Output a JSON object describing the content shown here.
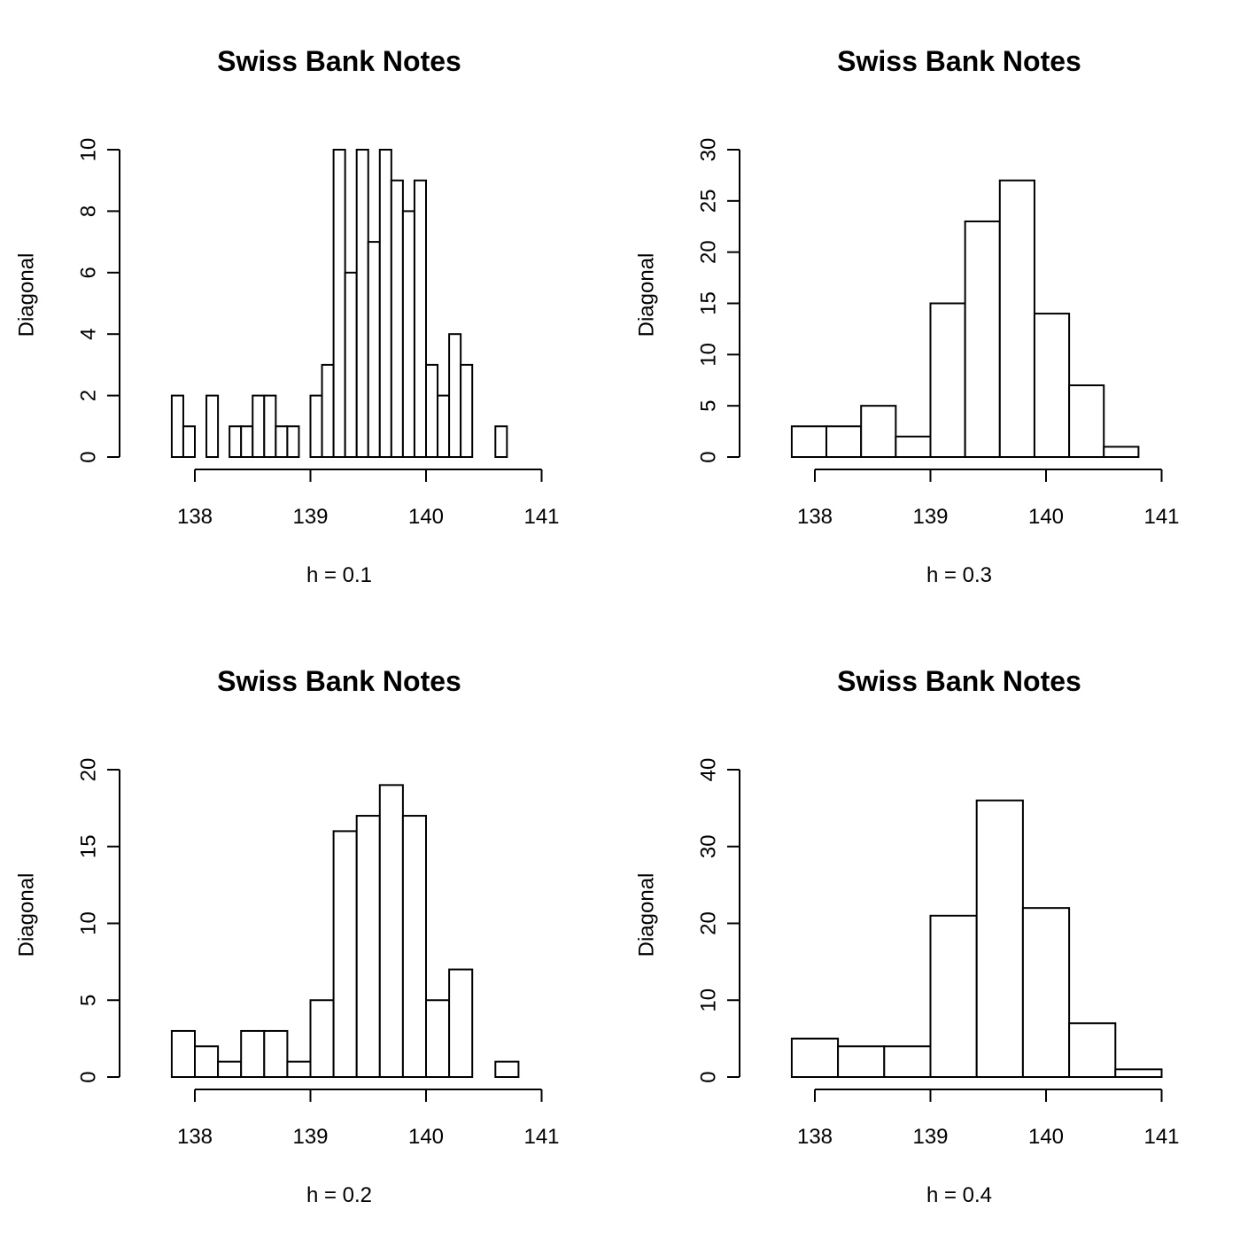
{
  "chart_data": [
    {
      "type": "bar",
      "title": "Swiss Bank Notes",
      "xlabel": "h = 0.1",
      "ylabel": "Diagonal",
      "xlim": [
        137.5,
        141.0
      ],
      "xticks": [
        138,
        139,
        140,
        141
      ],
      "ylim": [
        0,
        10
      ],
      "yticks": [
        0,
        2,
        4,
        6,
        8,
        10
      ],
      "bin_width": 0.1,
      "bins": [
        {
          "x0": 137.8,
          "x1": 137.9,
          "y": 2
        },
        {
          "x0": 137.9,
          "x1": 138.0,
          "y": 1
        },
        {
          "x0": 138.0,
          "x1": 138.1,
          "y": 0
        },
        {
          "x0": 138.1,
          "x1": 138.2,
          "y": 2
        },
        {
          "x0": 138.2,
          "x1": 138.3,
          "y": 0
        },
        {
          "x0": 138.3,
          "x1": 138.4,
          "y": 1
        },
        {
          "x0": 138.4,
          "x1": 138.5,
          "y": 1
        },
        {
          "x0": 138.5,
          "x1": 138.6,
          "y": 2
        },
        {
          "x0": 138.6,
          "x1": 138.7,
          "y": 2
        },
        {
          "x0": 138.7,
          "x1": 138.8,
          "y": 1
        },
        {
          "x0": 138.8,
          "x1": 138.9,
          "y": 1
        },
        {
          "x0": 138.9,
          "x1": 139.0,
          "y": 0
        },
        {
          "x0": 139.0,
          "x1": 139.1,
          "y": 2
        },
        {
          "x0": 139.1,
          "x1": 139.2,
          "y": 3
        },
        {
          "x0": 139.2,
          "x1": 139.3,
          "y": 10
        },
        {
          "x0": 139.3,
          "x1": 139.4,
          "y": 6
        },
        {
          "x0": 139.4,
          "x1": 139.5,
          "y": 10
        },
        {
          "x0": 139.5,
          "x1": 139.6,
          "y": 7
        },
        {
          "x0": 139.6,
          "x1": 139.7,
          "y": 10
        },
        {
          "x0": 139.7,
          "x1": 139.8,
          "y": 9
        },
        {
          "x0": 139.8,
          "x1": 139.9,
          "y": 8
        },
        {
          "x0": 139.9,
          "x1": 140.0,
          "y": 9
        },
        {
          "x0": 140.0,
          "x1": 140.1,
          "y": 3
        },
        {
          "x0": 140.1,
          "x1": 140.2,
          "y": 2
        },
        {
          "x0": 140.2,
          "x1": 140.3,
          "y": 4
        },
        {
          "x0": 140.3,
          "x1": 140.4,
          "y": 3
        },
        {
          "x0": 140.4,
          "x1": 140.5,
          "y": 0
        },
        {
          "x0": 140.5,
          "x1": 140.6,
          "y": 0
        },
        {
          "x0": 140.6,
          "x1": 140.7,
          "y": 1
        },
        {
          "x0": 140.7,
          "x1": 140.8,
          "y": 0
        },
        {
          "x0": 140.8,
          "x1": 140.9,
          "y": 0
        },
        {
          "x0": 140.9,
          "x1": 141.0,
          "y": 0
        }
      ]
    },
    {
      "type": "bar",
      "title": "Swiss Bank Notes",
      "xlabel": "h = 0.3",
      "ylabel": "Diagonal",
      "xlim": [
        137.5,
        141.0
      ],
      "xticks": [
        138,
        139,
        140,
        141
      ],
      "ylim": [
        0,
        30
      ],
      "yticks": [
        0,
        5,
        10,
        15,
        20,
        25,
        30
      ],
      "bin_width": 0.3,
      "bins": [
        {
          "x0": 137.8,
          "x1": 138.1,
          "y": 3
        },
        {
          "x0": 138.1,
          "x1": 138.4,
          "y": 3
        },
        {
          "x0": 138.4,
          "x1": 138.7,
          "y": 5
        },
        {
          "x0": 138.7,
          "x1": 139.0,
          "y": 2
        },
        {
          "x0": 139.0,
          "x1": 139.3,
          "y": 15
        },
        {
          "x0": 139.3,
          "x1": 139.6,
          "y": 23
        },
        {
          "x0": 139.6,
          "x1": 139.9,
          "y": 27
        },
        {
          "x0": 139.9,
          "x1": 140.2,
          "y": 14
        },
        {
          "x0": 140.2,
          "x1": 140.5,
          "y": 7
        },
        {
          "x0": 140.5,
          "x1": 140.8,
          "y": 1
        },
        {
          "x0": 140.8,
          "x1": 141.1,
          "y": 0
        }
      ]
    },
    {
      "type": "bar",
      "title": "Swiss Bank Notes",
      "xlabel": "h = 0.2",
      "ylabel": "Diagonal",
      "xlim": [
        137.5,
        141.0
      ],
      "xticks": [
        138,
        139,
        140,
        141
      ],
      "ylim": [
        0,
        20
      ],
      "yticks": [
        0,
        5,
        10,
        15,
        20
      ],
      "bin_width": 0.2,
      "bins": [
        {
          "x0": 137.8,
          "x1": 138.0,
          "y": 3
        },
        {
          "x0": 138.0,
          "x1": 138.2,
          "y": 2
        },
        {
          "x0": 138.2,
          "x1": 138.4,
          "y": 1
        },
        {
          "x0": 138.4,
          "x1": 138.6,
          "y": 3
        },
        {
          "x0": 138.6,
          "x1": 138.8,
          "y": 3
        },
        {
          "x0": 138.8,
          "x1": 139.0,
          "y": 1
        },
        {
          "x0": 139.0,
          "x1": 139.2,
          "y": 5
        },
        {
          "x0": 139.2,
          "x1": 139.4,
          "y": 16
        },
        {
          "x0": 139.4,
          "x1": 139.6,
          "y": 17
        },
        {
          "x0": 139.6,
          "x1": 139.8,
          "y": 19
        },
        {
          "x0": 139.8,
          "x1": 140.0,
          "y": 17
        },
        {
          "x0": 140.0,
          "x1": 140.2,
          "y": 5
        },
        {
          "x0": 140.2,
          "x1": 140.4,
          "y": 7
        },
        {
          "x0": 140.4,
          "x1": 140.6,
          "y": 0
        },
        {
          "x0": 140.6,
          "x1": 140.8,
          "y": 1
        },
        {
          "x0": 140.8,
          "x1": 141.0,
          "y": 0
        }
      ]
    },
    {
      "type": "bar",
      "title": "Swiss Bank Notes",
      "xlabel": "h = 0.4",
      "ylabel": "Diagonal",
      "xlim": [
        137.5,
        141.0
      ],
      "xticks": [
        138,
        139,
        140,
        141
      ],
      "ylim": [
        0,
        40
      ],
      "yticks": [
        0,
        10,
        20,
        30,
        40
      ],
      "bin_width": 0.4,
      "bins": [
        {
          "x0": 137.8,
          "x1": 138.2,
          "y": 5
        },
        {
          "x0": 138.2,
          "x1": 138.6,
          "y": 4
        },
        {
          "x0": 138.6,
          "x1": 139.0,
          "y": 4
        },
        {
          "x0": 139.0,
          "x1": 139.4,
          "y": 21
        },
        {
          "x0": 139.4,
          "x1": 139.8,
          "y": 36
        },
        {
          "x0": 139.8,
          "x1": 140.2,
          "y": 22
        },
        {
          "x0": 140.2,
          "x1": 140.6,
          "y": 7
        },
        {
          "x0": 140.6,
          "x1": 141.0,
          "y": 1
        }
      ]
    }
  ]
}
